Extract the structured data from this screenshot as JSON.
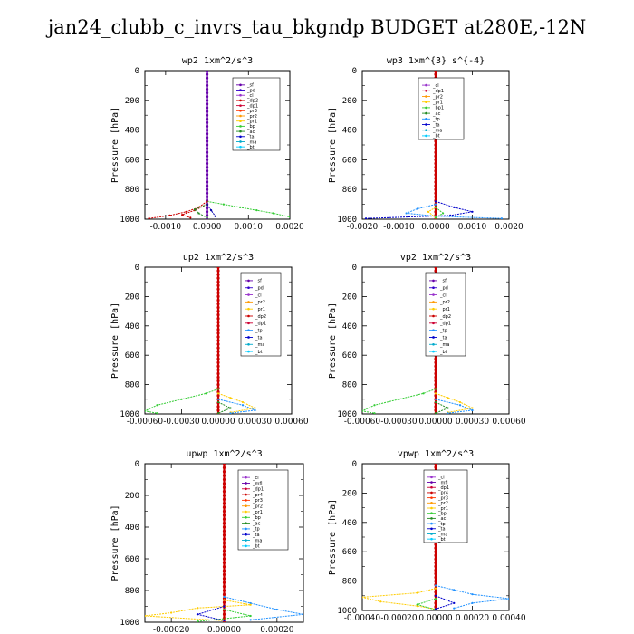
{
  "title": "jan24_clubb_c_invrs_tau_bkgndp  BUDGET at280E,-12N",
  "chart_data": [
    {
      "type": "line",
      "title": "wp2  1xm^2/s^3",
      "ylabel": "Pressure [hPa]",
      "xlim": [
        -0.0015,
        0.002
      ],
      "ylim": [
        1000,
        0
      ],
      "xticks": [
        -0.001,
        0.0,
        0.001,
        0.002
      ],
      "xtick_labels": [
        "-0.0010",
        "0.0000",
        "0.0010",
        "0.0020"
      ],
      "yticks": [
        0,
        200,
        400,
        600,
        800,
        1000
      ],
      "legend": [
        "_sf",
        "_pd",
        "_cl",
        "_dp2",
        "_dp1",
        "_pr3",
        "_pr2",
        "_pr1",
        "_bp",
        "_ac",
        "_ta",
        "_ma",
        "_bt"
      ],
      "legend_position": "top-right",
      "series": [
        {
          "name": "_pr1",
          "color": "#33cc33",
          "points": [
            [
              0.0,
              880
            ],
            [
              0.0004,
              900
            ],
            [
              0.0008,
              920
            ],
            [
              0.0012,
              940
            ],
            [
              0.0016,
              960
            ],
            [
              0.002,
              985
            ]
          ]
        },
        {
          "name": "_dp2",
          "color": "#cc0000",
          "points": [
            [
              0.0,
              880
            ],
            [
              -0.0002,
              920
            ],
            [
              -0.0005,
              950
            ],
            [
              -0.0009,
              975
            ],
            [
              -0.0014,
              995
            ]
          ]
        },
        {
          "name": "_pr3",
          "color": "#cc0000",
          "points": [
            [
              0.0,
              900
            ],
            [
              -0.0003,
              940
            ],
            [
              -0.0006,
              970
            ],
            [
              -0.0004,
              990
            ]
          ]
        },
        {
          "name": "_ac",
          "color": "#228b22",
          "points": [
            [
              0.0,
              900
            ],
            [
              -0.0003,
              935
            ],
            [
              -0.0002,
              960
            ],
            [
              0.0,
              990
            ]
          ]
        },
        {
          "name": "_ta",
          "color": "#0000aa",
          "points": [
            [
              0.0,
              900
            ],
            [
              0.0001,
              940
            ],
            [
              0.0002,
              980
            ]
          ]
        }
      ],
      "profile_color": "#6600aa"
    },
    {
      "type": "line",
      "title": "wp3  1xm^{3} s^{-4}",
      "ylabel": "Pressure [hPa]",
      "xlim": [
        -0.002,
        0.002
      ],
      "ylim": [
        1000,
        0
      ],
      "xticks": [
        -0.002,
        -0.001,
        0.0,
        0.001,
        0.002
      ],
      "xtick_labels": [
        "-0.0020",
        "-0.0010",
        "0.0000",
        "0.0010",
        "0.0020"
      ],
      "yticks": [
        0,
        200,
        400,
        600,
        800,
        1000
      ],
      "legend": [
        "_cl",
        "_dp1",
        "_pr2",
        "_pr1",
        "_bp1",
        "_ac",
        "_tp",
        "_ta",
        "_ma",
        "_bt"
      ],
      "legend_position": "top-right",
      "series": [
        {
          "name": "_ta",
          "color": "#0000cc",
          "points": [
            [
              0.0,
              880
            ],
            [
              0.0005,
              920
            ],
            [
              0.001,
              950
            ],
            [
              0.0004,
              975
            ],
            [
              -0.0019,
              995
            ]
          ]
        },
        {
          "name": "_ma",
          "color": "#1e90ff",
          "points": [
            [
              0.0,
              900
            ],
            [
              -0.0005,
              930
            ],
            [
              -0.0008,
              960
            ],
            [
              0.0,
              980
            ],
            [
              0.0018,
              995
            ]
          ]
        },
        {
          "name": "_pr1",
          "color": "#ffcc00",
          "points": [
            [
              0.0,
              920
            ],
            [
              -0.0002,
              950
            ],
            [
              0.0,
              990
            ]
          ]
        },
        {
          "name": "_ac",
          "color": "#33cc33",
          "points": [
            [
              0.0,
              920
            ],
            [
              0.0002,
              960
            ],
            [
              0.0,
              990
            ]
          ]
        }
      ],
      "profile_color": "#cc0000"
    },
    {
      "type": "line",
      "title": "up2  1xm^2/s^3",
      "ylabel": "Pressure [hPa]",
      "xlim": [
        -0.0006,
        0.0006
      ],
      "ylim": [
        1000,
        0
      ],
      "xticks": [
        -0.0006,
        -0.0003,
        0.0,
        0.0003,
        0.0006
      ],
      "xtick_labels": [
        "-0.00060",
        "-0.00030",
        "0.00000",
        "0.00030",
        "0.00060"
      ],
      "yticks": [
        0,
        200,
        400,
        600,
        800,
        1000
      ],
      "legend": [
        "_sf",
        "_pd",
        "_cl",
        "_pr2",
        "_pr1",
        "_dp2",
        "_dp1",
        "_tp",
        "_ta",
        "_ma",
        "_bt"
      ],
      "legend_position": "top-right",
      "series": [
        {
          "name": "_dp1",
          "color": "#33cc33",
          "points": [
            [
              0.0,
              830
            ],
            [
              -0.0001,
              860
            ],
            [
              -0.0003,
              900
            ],
            [
              -0.0005,
              940
            ],
            [
              -0.0006,
              980
            ],
            [
              -0.0005,
              995
            ]
          ]
        },
        {
          "name": "_pr1",
          "color": "#ffcc00",
          "points": [
            [
              0.0,
              860
            ],
            [
              0.0001,
              890
            ],
            [
              0.0002,
              920
            ],
            [
              0.0003,
              960
            ],
            [
              0.0001,
              990
            ]
          ]
        },
        {
          "name": "_tp",
          "color": "#1e90ff",
          "points": [
            [
              0.0,
              900
            ],
            [
              0.0002,
              940
            ],
            [
              0.0003,
              975
            ],
            [
              0.0001,
              995
            ]
          ]
        },
        {
          "name": "_pr2",
          "color": "#228b22",
          "points": [
            [
              0.0,
              920
            ],
            [
              0.0001,
              960
            ],
            [
              0.0,
              995
            ]
          ]
        }
      ],
      "profile_color": "#cc0000"
    },
    {
      "type": "line",
      "title": "vp2  1xm^2/s^3",
      "ylabel": "Pressure [hPa]",
      "xlim": [
        -0.0006,
        0.0006
      ],
      "ylim": [
        1000,
        0
      ],
      "xticks": [
        -0.0006,
        -0.0003,
        0.0,
        0.0003,
        0.0006
      ],
      "xtick_labels": [
        "-0.00060",
        "-0.00030",
        "0.00000",
        "0.00030",
        "0.00060"
      ],
      "yticks": [
        0,
        200,
        400,
        600,
        800,
        1000
      ],
      "legend": [
        "_sf",
        "_pd",
        "_cl",
        "_pr2",
        "_pr1",
        "_dp2",
        "_dp1",
        "_tp",
        "_ta",
        "_ma",
        "_bt"
      ],
      "legend_position": "top-right",
      "series": [
        {
          "name": "_dp1",
          "color": "#33cc33",
          "points": [
            [
              0.0,
              830
            ],
            [
              -0.0001,
              860
            ],
            [
              -0.0003,
              900
            ],
            [
              -0.0005,
              940
            ],
            [
              -0.0006,
              980
            ],
            [
              -0.0005,
              995
            ]
          ]
        },
        {
          "name": "_pr1",
          "color": "#ffcc00",
          "points": [
            [
              0.0,
              860
            ],
            [
              0.0001,
              890
            ],
            [
              0.0002,
              920
            ],
            [
              0.0003,
              960
            ],
            [
              0.0001,
              990
            ]
          ]
        },
        {
          "name": "_tp",
          "color": "#1e90ff",
          "points": [
            [
              0.0,
              900
            ],
            [
              0.0002,
              940
            ],
            [
              0.0003,
              975
            ],
            [
              0.0001,
              995
            ]
          ]
        },
        {
          "name": "_pr2",
          "color": "#228b22",
          "points": [
            [
              0.0,
              920
            ],
            [
              0.0001,
              960
            ],
            [
              0.0,
              995
            ]
          ]
        }
      ],
      "profile_color": "#cc0000"
    },
    {
      "type": "line",
      "title": "upwp  1xm^2/s^3",
      "ylabel": "Pressure [hPa]",
      "xlim": [
        -0.0003,
        0.0003
      ],
      "ylim": [
        1000,
        0
      ],
      "xticks": [
        -0.0002,
        0.0,
        0.0002
      ],
      "xtick_labels": [
        "-0.00020",
        "0.00000",
        "0.00020"
      ],
      "yticks": [
        0,
        200,
        400,
        600,
        800,
        1000
      ],
      "legend": [
        "_cl",
        "_mfl",
        "_dp1",
        "_pr4",
        "_pr3",
        "_pr2",
        "_pr1",
        "_bp",
        "_ac",
        "_tp",
        "_ta",
        "_ma",
        "_bt"
      ],
      "legend_position": "top-right",
      "series": [
        {
          "name": "_tp",
          "color": "#1e90ff",
          "points": [
            [
              0.0,
              840
            ],
            [
              0.0001,
              880
            ],
            [
              0.0002,
              920
            ],
            [
              0.0003,
              950
            ],
            [
              0.0001,
              985
            ]
          ]
        },
        {
          "name": "_pr1",
          "color": "#ffcc00",
          "points": [
            [
              0.0,
              860
            ],
            [
              0.0001,
              890
            ],
            [
              -0.0001,
              910
            ],
            [
              -0.0002,
              940
            ],
            [
              -0.0003,
              960
            ],
            [
              0.0,
              990
            ]
          ]
        },
        {
          "name": "_ac",
          "color": "#33cc33",
          "points": [
            [
              0.0,
              920
            ],
            [
              0.0001,
              960
            ],
            [
              -0.0001,
              995
            ]
          ]
        },
        {
          "name": "_ta",
          "color": "#0000cc",
          "points": [
            [
              0.0,
              900
            ],
            [
              -0.0001,
              950
            ],
            [
              0.0,
              990
            ]
          ]
        }
      ],
      "profile_color": "#cc0000"
    },
    {
      "type": "line",
      "title": "vpwp  1xm^2/s^3",
      "ylabel": "Pressure [hPa]",
      "xlim": [
        -0.0004,
        0.0004
      ],
      "ylim": [
        1000,
        0
      ],
      "xticks": [
        -0.0004,
        -0.0002,
        0.0,
        0.0002,
        0.0004
      ],
      "xtick_labels": [
        "-0.00040",
        "-0.00020",
        "0.00000",
        "0.00020",
        "0.00040"
      ],
      "yticks": [
        0,
        200,
        400,
        600,
        800,
        1000
      ],
      "legend": [
        "_cl",
        "_mfl",
        "_dp1",
        "_pr4",
        "_pr3",
        "_pr2",
        "_pr1",
        "_bp",
        "_ac",
        "_tp",
        "_ta",
        "_ma",
        "_bt"
      ],
      "legend_position": "top-right",
      "series": [
        {
          "name": "_tp",
          "color": "#1e90ff",
          "points": [
            [
              0.0,
              830
            ],
            [
              0.0001,
              860
            ],
            [
              0.0002,
              890
            ],
            [
              0.0004,
              920
            ],
            [
              0.0002,
              950
            ],
            [
              0.0001,
              985
            ]
          ]
        },
        {
          "name": "_pr1",
          "color": "#ffcc00",
          "points": [
            [
              0.0,
              850
            ],
            [
              -0.0001,
              880
            ],
            [
              -0.0004,
              910
            ],
            [
              -0.0003,
              940
            ],
            [
              -0.0001,
              970
            ],
            [
              0.0,
              990
            ]
          ]
        },
        {
          "name": "_ac",
          "color": "#33cc33",
          "points": [
            [
              0.0,
              920
            ],
            [
              -0.0001,
              960
            ],
            [
              0.0,
              995
            ]
          ]
        },
        {
          "name": "_ta",
          "color": "#0000cc",
          "points": [
            [
              0.0,
              900
            ],
            [
              0.0001,
              950
            ],
            [
              0.0,
              990
            ]
          ]
        }
      ],
      "profile_color": "#cc0000"
    }
  ],
  "legend_colors": {
    "_sf": "#6600aa",
    "_pd": "#3300cc",
    "_cl": "#9933cc",
    "_dp2": "#cc0000",
    "_dp1": "#cc0033",
    "_pr4": "#cc0000",
    "_pr3": "#ff3300",
    "_pr2": "#ff9900",
    "_pr1": "#ffcc00",
    "_bp": "#33cc33",
    "_bp1": "#33cc33",
    "_ac": "#228b22",
    "_tp": "#1e90ff",
    "_ta": "#0000cc",
    "_ma": "#00aacc",
    "_bt": "#00ccff",
    "_mfl": "#6600aa"
  }
}
